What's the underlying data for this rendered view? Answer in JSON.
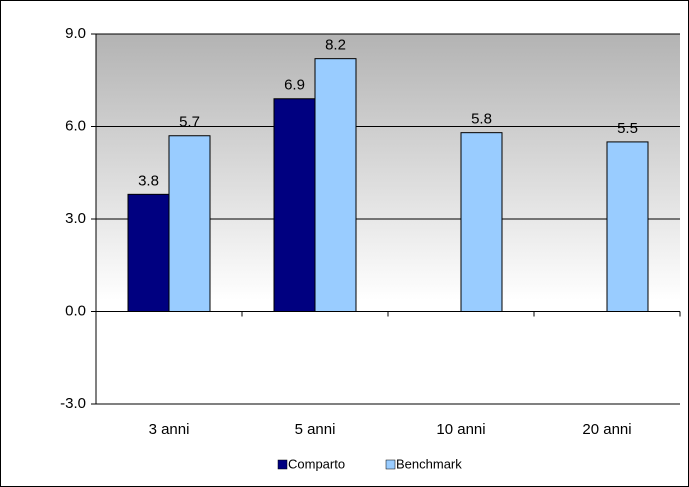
{
  "chart_data": {
    "type": "bar",
    "categories": [
      "3 anni",
      "5 anni",
      "10 anni",
      "20 anni"
    ],
    "series": [
      {
        "name": "Comparto",
        "color": "#000080",
        "values": [
          3.8,
          6.9,
          null,
          null
        ]
      },
      {
        "name": "Benchmark",
        "color": "#99ccff",
        "values": [
          5.7,
          8.2,
          5.8,
          5.5
        ]
      }
    ],
    "ylim": [
      -3,
      9
    ],
    "yticks": [
      {
        "value": -3,
        "label": "-3.0"
      },
      {
        "value": 0,
        "label": "0.0"
      },
      {
        "value": 3,
        "label": "3.0"
      },
      {
        "value": 6,
        "label": "6.0"
      },
      {
        "value": 9,
        "label": "9.0"
      }
    ],
    "grid": true,
    "legend": "bottom"
  }
}
